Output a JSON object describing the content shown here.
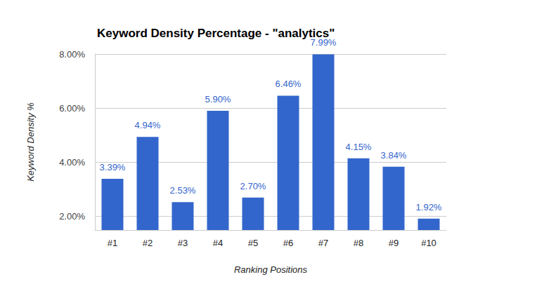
{
  "chart_data": {
    "type": "bar",
    "title": "Keyword Density Percentage - \"analytics\"",
    "x_label": "Ranking Positions",
    "y_label": "Keyword Density %",
    "categories": [
      "#1",
      "#2",
      "#3",
      "#4",
      "#5",
      "#6",
      "#7",
      "#8",
      "#9",
      "#10"
    ],
    "values": [
      3.39,
      4.94,
      2.53,
      5.9,
      2.7,
      6.46,
      7.99,
      4.15,
      3.84,
      1.92
    ],
    "value_labels": [
      "3.39%",
      "4.94%",
      "2.53%",
      "5.90%",
      "2.70%",
      "6.46%",
      "7.99%",
      "4.15%",
      "3.84%",
      "1.92%"
    ],
    "color": "#3366cc",
    "ylim": [
      1.5,
      8
    ],
    "yticks": [
      {
        "value": 2,
        "label": "2.00%"
      },
      {
        "value": 4,
        "label": "4.00%"
      },
      {
        "value": 6,
        "label": "6.00%"
      },
      {
        "value": 8,
        "label": "8.00%"
      }
    ],
    "grid": true,
    "data_labels": true
  }
}
